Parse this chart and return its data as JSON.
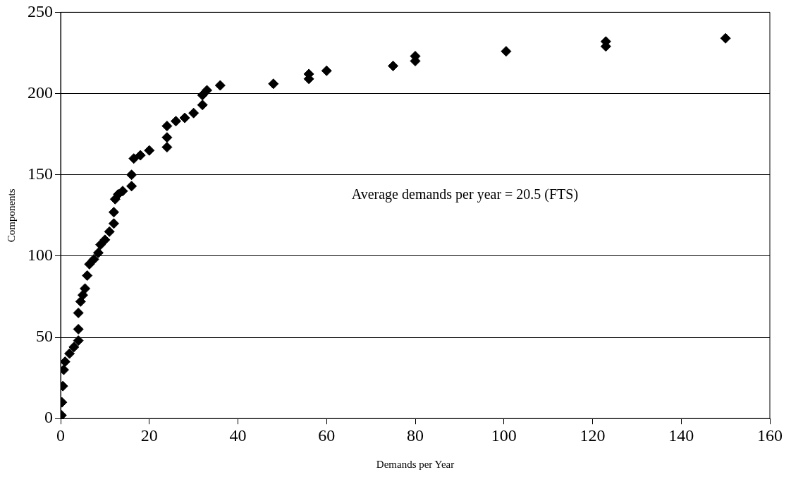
{
  "chart_data": {
    "type": "scatter",
    "xlabel": "Demands per Year",
    "ylabel": "Components",
    "annotations": [
      "Average demands per year = 20.5 (FTS)"
    ],
    "xlim": [
      0,
      160
    ],
    "xticks": [
      0,
      20,
      40,
      60,
      80,
      100,
      120,
      140,
      160
    ],
    "ylim": [
      0,
      250
    ],
    "yticks": [
      0,
      50,
      100,
      150,
      200,
      250
    ],
    "grid": "y",
    "legend": false,
    "marker": "diamond",
    "series": [
      {
        "color": "#000000",
        "x": [
          0.2,
          0.3,
          0.5,
          0.7,
          1,
          2,
          3,
          4,
          4,
          4,
          4.5,
          5,
          5.5,
          6,
          6.5,
          7.5,
          8.5,
          9,
          10,
          11,
          12,
          12,
          12.3,
          13,
          14,
          16,
          16,
          16.5,
          18,
          20,
          24,
          24,
          24,
          26,
          28,
          30,
          32,
          32,
          33,
          36,
          48,
          56,
          56,
          60,
          75,
          80,
          80,
          100.5,
          123,
          123,
          150
        ],
        "values": [
          2,
          10,
          20,
          30,
          35,
          40,
          44,
          48,
          55,
          65,
          72,
          76,
          80,
          88,
          95,
          98,
          102,
          107,
          110,
          115,
          120,
          127,
          135,
          138,
          140,
          143,
          150,
          160,
          162,
          165,
          167,
          173,
          180,
          183,
          185,
          188,
          193,
          199,
          202,
          205,
          206,
          209,
          212,
          214,
          217,
          220,
          223,
          226,
          229,
          232,
          234
        ]
      }
    ]
  }
}
